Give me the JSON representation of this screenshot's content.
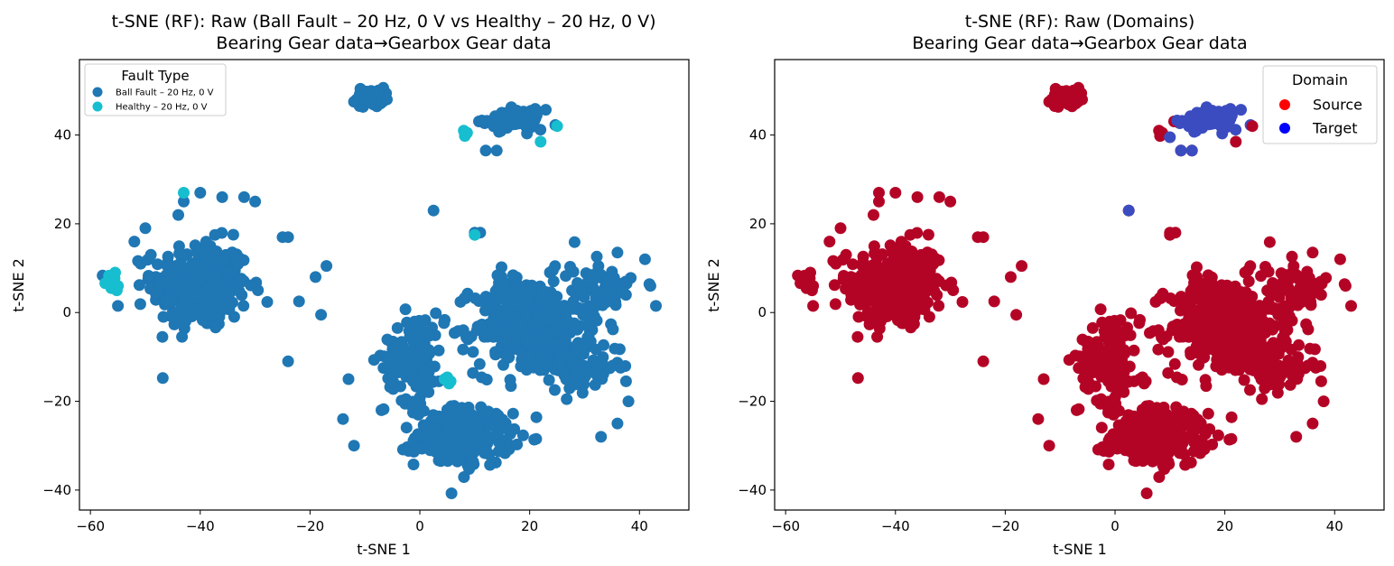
{
  "chart_data": [
    {
      "type": "scatter",
      "title_line1": "t-SNE (RF): Raw (Ball Fault – 20 Hz, 0 V vs Healthy – 20 Hz, 0 V)",
      "title_line2": "Bearing Gear data→Gearbox Gear data",
      "xlabel": "t-SNE 1",
      "ylabel": "t-SNE 2",
      "xlim": [
        -62,
        49
      ],
      "ylim": [
        -44.5,
        57
      ],
      "xticks": [
        -60,
        -40,
        -20,
        0,
        20,
        40
      ],
      "yticks": [
        -40,
        -20,
        0,
        20,
        40
      ],
      "xtick_labels": [
        "−60",
        "−40",
        "−20",
        "0",
        "20",
        "40"
      ],
      "ytick_labels": [
        "−40",
        "−20",
        "0",
        "20",
        "40"
      ],
      "grid": false,
      "legend": {
        "title": "Fault Type",
        "placement": "top-left",
        "entries": [
          {
            "label": "Ball Fault – 20 Hz, 0 V",
            "color": "#1f77b4"
          },
          {
            "label": "Healthy – 20 Hz, 0 V",
            "color": "#17becf"
          }
        ]
      },
      "series": [
        {
          "name": "Ball Fault – 20 Hz, 0 V",
          "color": "#1f77b4",
          "clusters": [
            {
              "center": [
                -40,
                6
              ],
              "spread": [
                8,
                9
              ],
              "count": 330
            },
            {
              "center": [
                -9,
                48.5
              ],
              "spread": [
                2.2,
                2
              ],
              "count": 45
            },
            {
              "center": [
                17,
                43.5
              ],
              "spread": [
                5,
                2
              ],
              "count": 70
            },
            {
              "center": [
                8,
                -28
              ],
              "spread": [
                8,
                6
              ],
              "count": 230
            },
            {
              "center": [
                20,
                -3
              ],
              "spread": [
                9,
                10
              ],
              "count": 420
            },
            {
              "center": [
                -1,
                -10
              ],
              "spread": [
                5,
                9
              ],
              "count": 130
            },
            {
              "center": [
                33,
                5
              ],
              "spread": [
                5,
                6
              ],
              "count": 80
            },
            {
              "center": [
                30,
                -12
              ],
              "spread": [
                6,
                5
              ],
              "count": 70
            }
          ],
          "points": [
            [
              2.5,
              23
            ],
            [
              -52,
              16
            ],
            [
              -50,
              19
            ],
            [
              -55,
              1.5
            ],
            [
              -49,
              13
            ],
            [
              -17,
              10.5
            ],
            [
              -19,
              8
            ],
            [
              -22,
              2.5
            ],
            [
              -18,
              -0.5
            ],
            [
              -24,
              -11
            ],
            [
              -44,
              22
            ],
            [
              -43,
              25
            ],
            [
              -40,
              27
            ],
            [
              -36,
              26
            ],
            [
              -32,
              26
            ],
            [
              -30,
              25
            ],
            [
              -25,
              17
            ],
            [
              -24,
              17
            ],
            [
              10,
              18
            ],
            [
              11,
              18
            ],
            [
              12,
              36.5
            ],
            [
              14,
              36.5
            ],
            [
              -12,
              47.5
            ],
            [
              -6,
              48
            ],
            [
              -13,
              -15
            ],
            [
              -14,
              -24
            ],
            [
              -12,
              -30
            ],
            [
              -7,
              -22
            ],
            [
              42,
              6
            ],
            [
              43,
              1.5
            ],
            [
              41,
              12
            ],
            [
              38,
              -20
            ],
            [
              36,
              -25
            ],
            [
              33,
              -28
            ]
          ]
        },
        {
          "name": "Healthy – 20 Hz, 0 V",
          "color": "#17becf",
          "points": [
            [
              -56.5,
              7
            ],
            [
              -55.5,
              9
            ],
            [
              -55,
              6
            ],
            [
              -56.2,
              5.5
            ],
            [
              -57.3,
              6.6
            ],
            [
              -55.6,
              7.7
            ],
            [
              -56.6,
              8.3
            ],
            [
              -55.2,
              5
            ],
            [
              -43,
              27
            ],
            [
              8,
              41
            ],
            [
              8.2,
              39.8
            ],
            [
              8.6,
              40.5
            ],
            [
              22,
              38.5
            ],
            [
              25,
              42
            ],
            [
              10,
              17.5
            ],
            [
              4.5,
              -15
            ],
            [
              5.6,
              -15.5
            ],
            [
              5,
              -14.6
            ],
            [
              5.3,
              -16
            ]
          ]
        }
      ]
    },
    {
      "type": "scatter",
      "title_line1": "t-SNE (RF): Raw (Domains)",
      "title_line2": "Bearing Gear data→Gearbox Gear data",
      "xlabel": "t-SNE 1",
      "ylabel": "t-SNE 2",
      "xlim": [
        -62,
        49
      ],
      "ylim": [
        -44.5,
        57
      ],
      "xticks": [
        -60,
        -40,
        -20,
        0,
        20,
        40
      ],
      "yticks": [
        -40,
        -20,
        0,
        20,
        40
      ],
      "xtick_labels": [
        "−60",
        "−40",
        "−20",
        "0",
        "20",
        "40"
      ],
      "ytick_labels": [
        "−40",
        "−20",
        "0",
        "20",
        "40"
      ],
      "grid": false,
      "legend": {
        "title": "Domain",
        "placement": "top-right",
        "entries": [
          {
            "label": "Source",
            "color": "#ff0000"
          },
          {
            "label": "Target",
            "color": "#0000ff"
          }
        ]
      },
      "series": [
        {
          "name": "Source",
          "color": "#b40426",
          "clusters": "same layout as left panel"
        },
        {
          "name": "Target",
          "color": "#3b4cc0",
          "clusters": [
            {
              "center": [
                17,
                43.5
              ],
              "spread": [
                5,
                2
              ],
              "count": 70
            }
          ],
          "points": [
            [
              12,
              36.5
            ],
            [
              14,
              36.5
            ],
            [
              10,
              39.5
            ],
            [
              2.5,
              23
            ]
          ]
        }
      ]
    }
  ]
}
